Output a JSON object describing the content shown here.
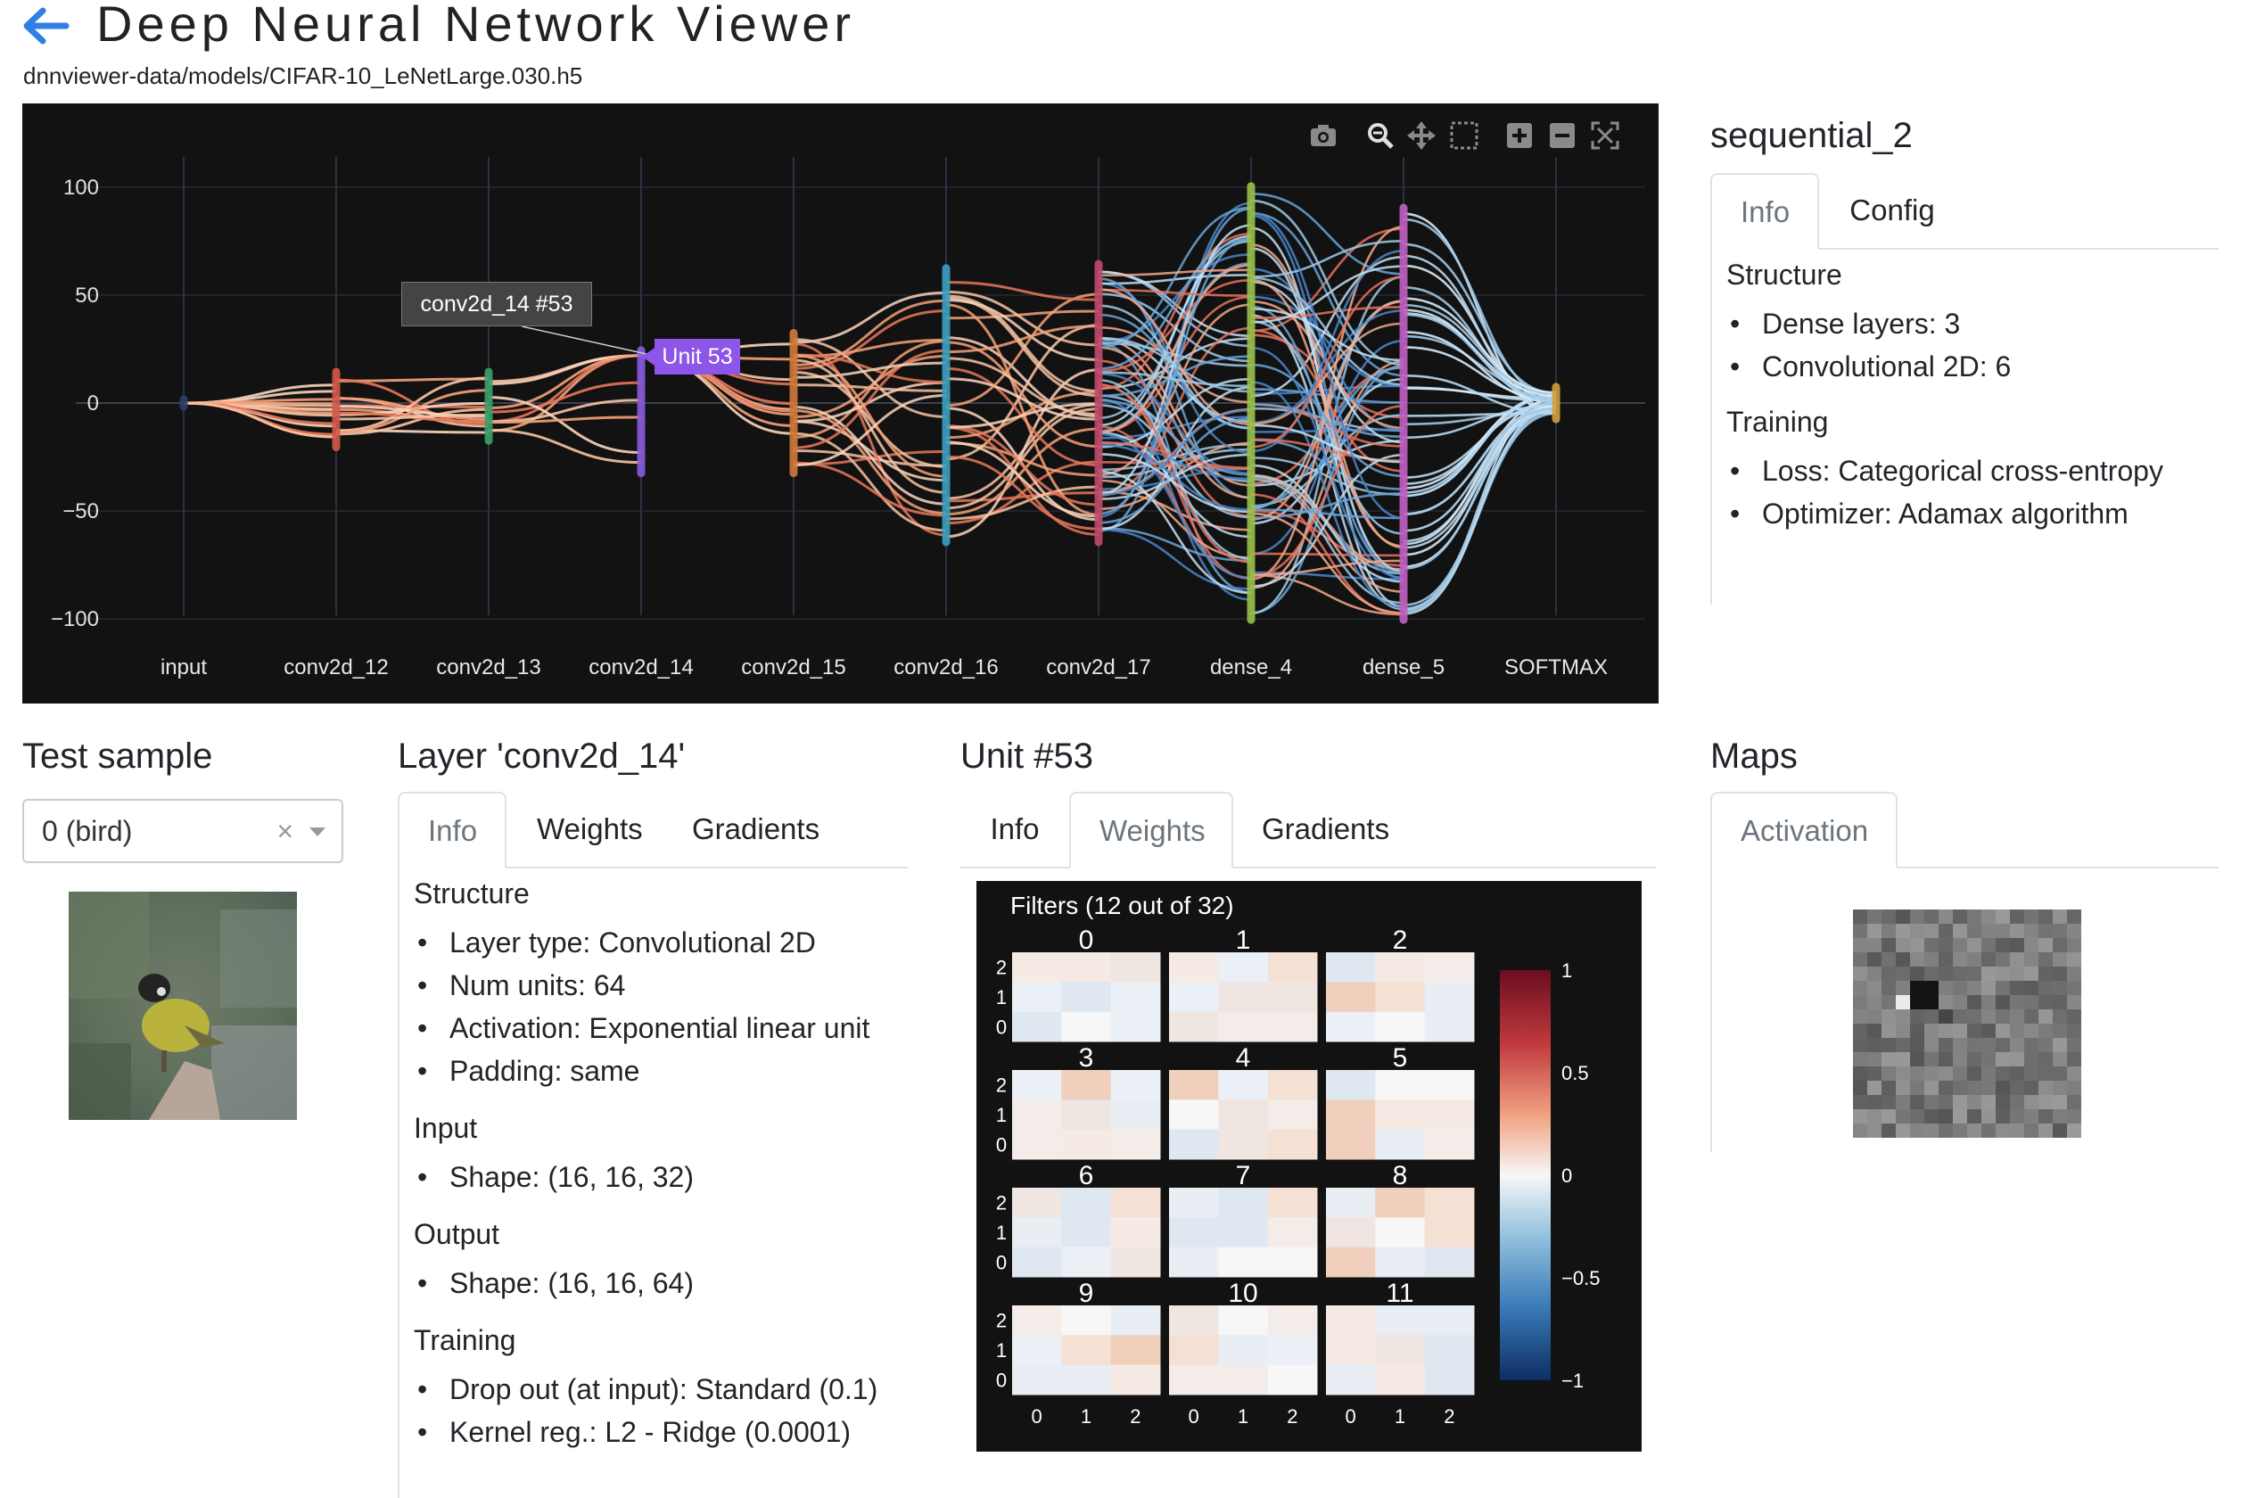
{
  "header": {
    "title": "Deep Neural Network Viewer",
    "model_path": "dnnviewer-data/models/CIFAR-10_LeNetLarge.030.h5"
  },
  "colors": {
    "accent": "#2f7fe4",
    "graph_bg": "#121212",
    "tab_border": "#dee2e6",
    "hover_unit": "#8d55e8"
  },
  "graph": {
    "y_ticks": [
      "100",
      "50",
      "0",
      "−50",
      "−100"
    ],
    "layers": [
      "input",
      "conv2d_12",
      "conv2d_13",
      "conv2d_14",
      "conv2d_15",
      "conv2d_16",
      "conv2d_17",
      "dense_4",
      "dense_5",
      "SOFTMAX"
    ],
    "hover_label": "conv2d_14 #53",
    "hover_unit": "Unit 53",
    "modebar_icons": [
      "camera-icon",
      "zoom-icon",
      "pan-icon",
      "box-select-icon",
      "zoom-in-icon",
      "zoom-out-icon",
      "autoscale-icon"
    ]
  },
  "model_panel": {
    "title": "sequential_2",
    "tabs": [
      "Info",
      "Config"
    ],
    "structure_heading": "Structure",
    "structure": [
      "Dense layers: 3",
      "Convolutional 2D: 6"
    ],
    "training_heading": "Training",
    "training": [
      "Loss: Categorical cross-entropy",
      "Optimizer: Adamax algorithm"
    ]
  },
  "test_sample": {
    "title": "Test sample",
    "selected": "0 (bird)",
    "clear": "×"
  },
  "layer_panel": {
    "title": "Layer 'conv2d_14'",
    "tabs": [
      "Info",
      "Weights",
      "Gradients"
    ],
    "structure_heading": "Structure",
    "structure": [
      "Layer type: Convolutional 2D",
      "Num units: 64",
      "Activation: Exponential linear unit",
      "Padding: same"
    ],
    "input_heading": "Input",
    "input": [
      "Shape: (16, 16, 32)"
    ],
    "output_heading": "Output",
    "output": [
      "Shape: (16, 16, 64)"
    ],
    "training_heading": "Training",
    "training": [
      "Drop out (at input): Standard (0.1)",
      "Kernel reg.: L2 - Ridge (0.0001)"
    ]
  },
  "unit_panel": {
    "title": "Unit #53",
    "tabs": [
      "Info",
      "Weights",
      "Gradients"
    ],
    "filters_title": "Filters (12 out of 32)",
    "filter_labels": [
      "0",
      "1",
      "2",
      "3",
      "4",
      "5",
      "6",
      "7",
      "8",
      "9",
      "10",
      "11"
    ],
    "row_ticks": [
      "2",
      "1",
      "0"
    ],
    "col_ticks": [
      "0",
      "1",
      "2"
    ],
    "colorbar_ticks": [
      "1",
      "0.5",
      "0",
      "−0.5",
      "−1"
    ]
  },
  "maps_panel": {
    "title": "Maps",
    "tabs": [
      "Activation"
    ]
  }
}
